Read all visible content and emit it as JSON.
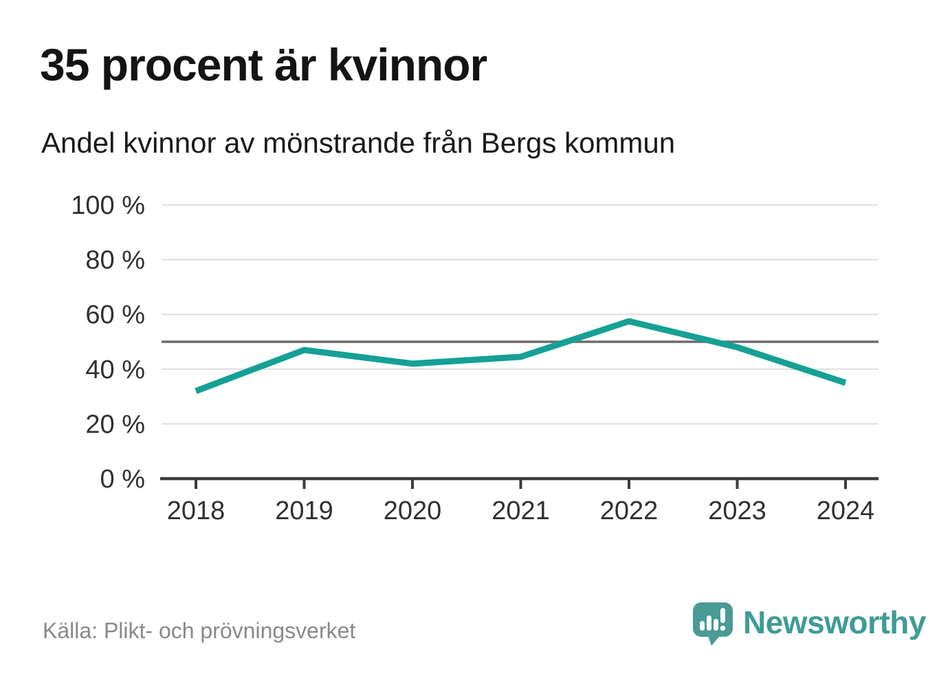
{
  "header": {
    "title": "35 procent är kvinnor",
    "subtitle": "Andel kvinnor av mönstrande från Bergs kommun"
  },
  "chart_data": {
    "type": "line",
    "title": "35 procent är kvinnor",
    "subtitle": "Andel kvinnor av mönstrande från Bergs kommun",
    "x": [
      "2018",
      "2019",
      "2020",
      "2021",
      "2022",
      "2023",
      "2024"
    ],
    "series": [
      {
        "name": "Andel kvinnor av mönstrande",
        "values": [
          32,
          47,
          42,
          44.5,
          57.5,
          48,
          35
        ]
      }
    ],
    "unit": "%",
    "xlabel": "",
    "ylabel": "",
    "ylim": [
      0,
      100
    ],
    "yticks": [
      0,
      20,
      40,
      60,
      80,
      100
    ],
    "ytick_labels": [
      "0 %",
      "20 %",
      "40 %",
      "60 %",
      "80 %",
      "100 %"
    ],
    "reference_line": 50,
    "grid": "horizontal",
    "legend_position": "none"
  },
  "footer": {
    "source": "Källa: Plikt- och prövningsverket",
    "brand_name": "Newsworthy"
  },
  "colors": {
    "line": "#15a096",
    "gridline": "#e2e2e2",
    "reference_line": "#6c6c6c",
    "axis": "#3b3b3b",
    "axis_label_text": "#303030",
    "title_text": "#141414",
    "muted_text": "#898989",
    "brand_teal": "#3f9b96",
    "logo_bubble_teal": "#4a9a95",
    "background": "#ffffff"
  }
}
